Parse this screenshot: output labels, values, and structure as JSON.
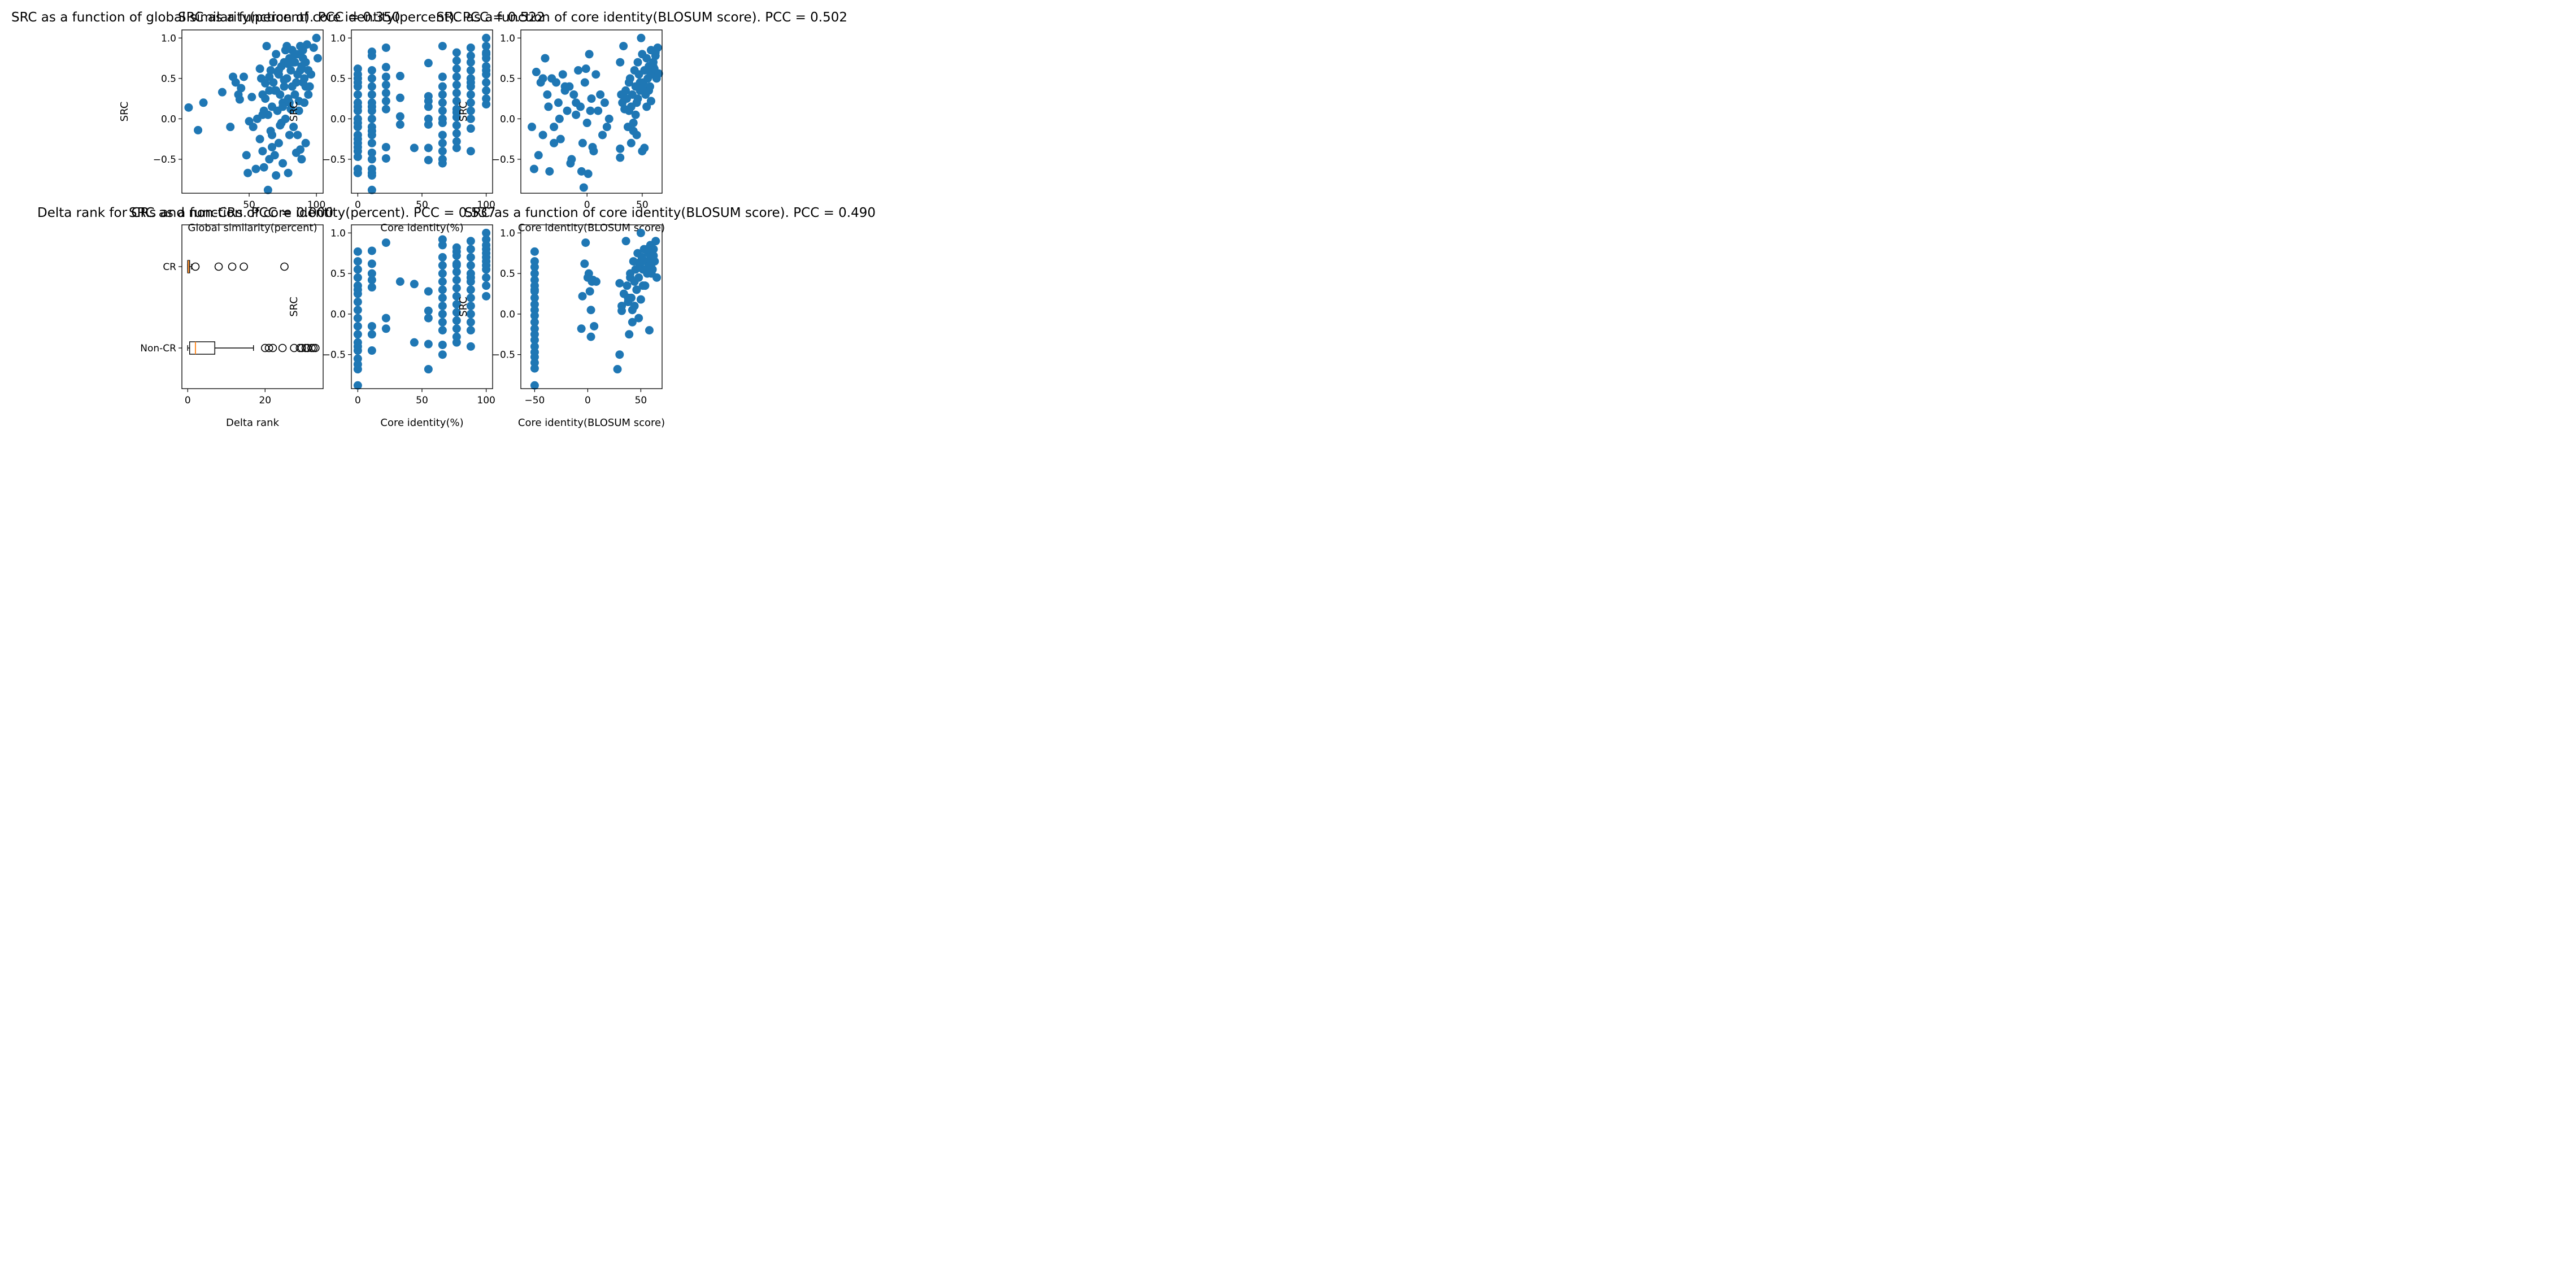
{
  "colors": {
    "marker": "#1f77b4",
    "median": "#ff7f0e",
    "axis": "#000000",
    "background": "#ffffff"
  },
  "chart_data": [
    {
      "id": "a",
      "type": "scatter",
      "title": "SRC as a function of global similarity(percent). PCC = 0.350",
      "xlabel": "Global similarity(percent)",
      "ylabel": "SRC",
      "xlim": [
        0,
        105
      ],
      "ylim": [
        -0.92,
        1.1
      ],
      "xticks": [
        50,
        100
      ],
      "yticks": [
        -0.5,
        0.0,
        0.5,
        1.0
      ],
      "tick_labels_x": [
        "50",
        "100"
      ],
      "tick_labels_y": [
        "−0.5",
        "0.0",
        "0.5",
        "1.0"
      ],
      "x": [
        5,
        12,
        16,
        30,
        36,
        38,
        40,
        42,
        43,
        44,
        46,
        48,
        49,
        50,
        52,
        53,
        55,
        56,
        58,
        59,
        60,
        60,
        61,
        62,
        63,
        64,
        64,
        65,
        65,
        66,
        67,
        67,
        68,
        69,
        70,
        70,
        71,
        72,
        72,
        73,
        74,
        74,
        75,
        75,
        76,
        76,
        77,
        78,
        78,
        79,
        79,
        80,
        80,
        81,
        82,
        82,
        83,
        84,
        84,
        85,
        86,
        86,
        87,
        88,
        88,
        89,
        89,
        90,
        90,
        91,
        92,
        92,
        93,
        94,
        95,
        96,
        98,
        100,
        101,
        60,
        62,
        66,
        68,
        70,
        72,
        75,
        77,
        78,
        80,
        83,
        85,
        86,
        88,
        90,
        92,
        94,
        58,
        61,
        65,
        67,
        69,
        71,
        73,
        76,
        79,
        81,
        84,
        87,
        89,
        91
      ],
      "y": [
        0.14,
        -0.14,
        0.2,
        0.33,
        -0.1,
        0.52,
        0.45,
        0.3,
        0.24,
        0.38,
        0.52,
        -0.45,
        -0.67,
        -0.03,
        0.27,
        -0.1,
        -0.62,
        0.0,
        0.62,
        0.5,
        -0.4,
        0.3,
        -0.6,
        0.44,
        0.9,
        -0.88,
        0.05,
        0.35,
        -0.5,
        0.6,
        0.15,
        -0.2,
        0.7,
        -0.45,
        0.8,
        -0.7,
        0.1,
        0.55,
        -0.3,
        0.3,
        0.65,
        -0.05,
        0.2,
        -0.55,
        0.7,
        0.4,
        0.0,
        0.9,
        0.5,
        -0.67,
        0.25,
        0.75,
        -0.2,
        0.6,
        0.4,
        0.85,
        -0.1,
        0.7,
        0.3,
        -0.42,
        0.55,
        0.8,
        0.1,
        0.9,
        -0.38,
        0.65,
        -0.5,
        0.45,
        0.85,
        0.2,
        -0.3,
        0.7,
        0.92,
        0.6,
        0.4,
        0.55,
        0.88,
        1.0,
        0.75,
        0.05,
        0.25,
        -0.15,
        0.45,
        0.35,
        0.6,
        0.15,
        0.85,
        0.5,
        0.2,
        0.7,
        0.45,
        -0.2,
        0.6,
        0.75,
        0.4,
        0.3,
        -0.25,
        0.1,
        0.52,
        -0.35,
        0.35,
        0.58,
        -0.08,
        0.48,
        0.68,
        0.12,
        0.8,
        0.22,
        0.62,
        0.5
      ]
    },
    {
      "id": "b",
      "type": "scatter",
      "title": "SRC as a function of core identity(percent). PCC = 0.522",
      "xlabel": "Core identity(%)",
      "ylabel": "SRC",
      "xlim": [
        -5,
        105
      ],
      "ylim": [
        -0.92,
        1.1
      ],
      "xticks": [
        0,
        50,
        100
      ],
      "yticks": [
        -0.5,
        0.0,
        0.5,
        1.0
      ],
      "tick_labels_x": [
        "0",
        "50",
        "100"
      ],
      "tick_labels_y": [
        "−0.5",
        "0.0",
        "0.5",
        "1.0"
      ],
      "x": [
        0,
        0,
        0,
        0,
        0,
        0,
        0,
        0,
        0,
        0,
        0,
        0,
        0,
        0,
        0,
        0,
        0,
        0,
        0,
        0,
        11,
        11,
        11,
        11,
        11,
        11,
        11,
        11,
        11,
        11,
        11,
        11,
        11,
        11,
        11,
        11,
        11,
        11,
        11,
        11,
        22,
        22,
        22,
        22,
        22,
        22,
        22,
        22,
        22,
        33,
        33,
        33,
        33,
        44,
        55,
        55,
        55,
        55,
        55,
        55,
        55,
        55,
        66,
        66,
        66,
        66,
        66,
        66,
        66,
        66,
        66,
        66,
        66,
        66,
        66,
        77,
        77,
        77,
        77,
        77,
        77,
        77,
        77,
        77,
        77,
        77,
        77,
        77,
        77,
        88,
        88,
        88,
        88,
        88,
        88,
        88,
        88,
        88,
        88,
        88,
        88,
        88,
        100,
        100,
        100,
        100,
        100,
        100,
        100,
        100,
        100,
        100,
        100,
        100
      ],
      "y": [
        0.62,
        0.5,
        0.4,
        0.3,
        0.2,
        0.1,
        0.0,
        -0.1,
        -0.2,
        -0.3,
        -0.4,
        -0.47,
        -0.62,
        -0.67,
        0.55,
        0.45,
        0.15,
        -0.05,
        -0.25,
        -0.35,
        0.83,
        0.78,
        0.6,
        0.5,
        0.4,
        0.3,
        0.2,
        0.1,
        0.0,
        -0.1,
        -0.2,
        -0.3,
        -0.42,
        -0.5,
        -0.62,
        -0.67,
        -0.7,
        -0.88,
        0.15,
        -0.15,
        0.88,
        0.64,
        0.52,
        0.42,
        0.32,
        0.22,
        0.12,
        -0.35,
        -0.49,
        0.53,
        0.26,
        0.03,
        -0.07,
        -0.36,
        0.69,
        0.28,
        0.22,
        0.15,
        0.0,
        -0.07,
        -0.36,
        -0.51,
        0.9,
        0.52,
        0.4,
        0.3,
        0.2,
        0.1,
        0.0,
        -0.05,
        -0.2,
        -0.3,
        -0.4,
        -0.5,
        -0.55,
        0.82,
        0.72,
        0.62,
        0.52,
        0.42,
        0.32,
        0.22,
        0.12,
        0.02,
        -0.08,
        -0.18,
        -0.28,
        -0.36,
        0.08,
        0.88,
        0.78,
        0.7,
        0.6,
        0.5,
        0.4,
        0.3,
        0.2,
        0.1,
        0.0,
        -0.12,
        -0.4,
        0.45,
        1.0,
        0.9,
        0.82,
        0.75,
        0.65,
        0.55,
        0.45,
        0.35,
        0.25,
        0.18,
        0.8,
        0.6
      ]
    },
    {
      "id": "c",
      "type": "scatter",
      "title": "SRC as a function of core identity(BLOSUM score). PCC = 0.502",
      "xlabel": "Core identity(BLOSUM score)",
      "ylabel": "SRC",
      "xlim": [
        -60,
        68
      ],
      "ylim": [
        -0.92,
        1.1
      ],
      "xticks": [
        0,
        50
      ],
      "yticks": [
        -0.5,
        0.0,
        0.5,
        1.0
      ],
      "tick_labels_x": [
        "0",
        "50"
      ],
      "tick_labels_y": [
        "−0.5",
        "0.0",
        "0.5",
        "1.0"
      ],
      "x": [
        -50,
        -48,
        -46,
        -44,
        -42,
        -40,
        -38,
        -36,
        -34,
        -32,
        -30,
        -28,
        -26,
        -24,
        -22,
        -20,
        -18,
        -16,
        -14,
        -12,
        -10,
        -8,
        -6,
        -4,
        -2,
        0,
        2,
        4,
        6,
        8,
        10,
        12,
        14,
        16,
        18,
        20,
        -5,
        -3,
        -1,
        1,
        3,
        5,
        -10,
        -15,
        -20,
        -25,
        -30,
        -35,
        -40,
        30,
        30,
        30,
        31,
        32,
        33,
        34,
        35,
        36,
        37,
        38,
        39,
        40,
        41,
        42,
        43,
        44,
        45,
        46,
        47,
        48,
        49,
        50,
        51,
        52,
        53,
        54,
        55,
        56,
        57,
        58,
        59,
        60,
        61,
        62,
        63,
        64,
        65,
        40,
        42,
        44,
        46,
        48,
        50,
        52,
        54,
        56,
        58,
        60,
        62,
        38,
        45,
        50,
        55,
        60
      ],
      "y": [
        -0.1,
        -0.62,
        0.58,
        -0.45,
        0.45,
        -0.2,
        0.75,
        0.3,
        -0.65,
        0.5,
        -0.1,
        0.45,
        0.2,
        -0.25,
        0.55,
        0.35,
        0.1,
        0.4,
        -0.5,
        0.3,
        0.05,
        0.6,
        0.15,
        -0.3,
        0.45,
        -0.05,
        0.8,
        0.25,
        -0.4,
        0.55,
        0.1,
        0.3,
        -0.2,
        0.2,
        -0.1,
        0.0,
        -0.65,
        -0.85,
        0.62,
        -0.68,
        0.1,
        -0.35,
        0.2,
        -0.55,
        0.4,
        0.0,
        -0.3,
        0.15,
        0.5,
        0.7,
        -0.37,
        -0.48,
        0.3,
        0.2,
        0.9,
        0.12,
        0.35,
        0.25,
        -0.1,
        0.45,
        0.5,
        0.15,
        0.3,
        -0.05,
        0.6,
        0.4,
        0.2,
        0.7,
        0.55,
        0.35,
        1.0,
        0.8,
        0.45,
        0.6,
        0.3,
        0.75,
        0.5,
        0.65,
        0.4,
        0.85,
        0.55,
        0.7,
        0.62,
        0.78,
        0.5,
        0.88,
        0.56,
        -0.3,
        -0.15,
        0.05,
        0.25,
        0.45,
        -0.4,
        -0.36,
        0.15,
        0.35,
        0.22,
        0.65,
        0.82,
        0.1,
        -0.2,
        0.38,
        0.6,
        0.7
      ]
    },
    {
      "id": "d",
      "type": "box",
      "title": "Delta rank for CRs and non-CRs. PCC = 0.000",
      "xlabel": "Delta rank",
      "categories": [
        "CR",
        "Non-CR"
      ],
      "xlim": [
        -1.5,
        35
      ],
      "xticks": [
        0,
        20
      ],
      "tick_labels_x": [
        "0",
        "20"
      ],
      "boxes": [
        {
          "name": "CR",
          "whisker_low": 0,
          "q1": 0,
          "median": 0.2,
          "q3": 0.5,
          "whisker_high": 1,
          "outliers": [
            2,
            8,
            11.5,
            14.5,
            25
          ]
        },
        {
          "name": "Non-CR",
          "whisker_low": 0,
          "q1": 0.5,
          "median": 2,
          "q3": 7,
          "whisker_high": 17,
          "outliers": [
            20,
            21,
            22,
            24.5,
            27.5,
            29,
            29.5,
            30.5,
            31,
            32,
            32.5,
            33
          ]
        }
      ]
    },
    {
      "id": "e",
      "type": "scatter",
      "title": "SRC as a function of core identity(percent). PCC = 0.537",
      "xlabel": "Core identity(%)",
      "ylabel": "SRC",
      "xlim": [
        -5,
        105
      ],
      "ylim": [
        -0.92,
        1.1
      ],
      "xticks": [
        0,
        50,
        100
      ],
      "yticks": [
        -0.5,
        0.0,
        0.5,
        1.0
      ],
      "tick_labels_x": [
        "0",
        "50",
        "100"
      ],
      "tick_labels_y": [
        "−0.5",
        "0.0",
        "0.5",
        "1.0"
      ],
      "x": [
        0,
        0,
        0,
        0,
        0,
        0,
        0,
        0,
        0,
        0,
        0,
        0,
        0,
        0,
        0,
        0,
        0,
        0,
        0,
        11,
        11,
        11,
        11,
        11,
        11,
        11,
        11,
        22,
        22,
        22,
        33,
        44,
        44,
        55,
        55,
        55,
        55,
        55,
        66,
        66,
        66,
        66,
        66,
        66,
        66,
        66,
        66,
        66,
        66,
        66,
        66,
        66,
        77,
        77,
        77,
        77,
        77,
        77,
        77,
        77,
        77,
        77,
        77,
        77,
        77,
        77,
        77,
        88,
        88,
        88,
        88,
        88,
        88,
        88,
        88,
        88,
        88,
        88,
        88,
        88,
        88,
        100,
        100,
        100,
        100,
        100,
        100,
        100,
        100,
        100,
        100,
        100,
        100
      ],
      "y": [
        0.77,
        0.65,
        0.55,
        0.45,
        0.35,
        0.25,
        0.15,
        0.05,
        -0.05,
        -0.15,
        -0.25,
        -0.35,
        -0.45,
        -0.55,
        -0.62,
        -0.68,
        -0.88,
        0.3,
        -0.4,
        0.78,
        0.62,
        0.5,
        0.42,
        0.33,
        -0.15,
        -0.25,
        -0.45,
        0.88,
        -0.05,
        -0.18,
        0.4,
        0.37,
        -0.35,
        0.28,
        0.04,
        -0.05,
        -0.37,
        -0.68,
        0.92,
        0.85,
        0.7,
        0.6,
        0.5,
        0.4,
        0.3,
        0.2,
        0.1,
        0.0,
        -0.1,
        -0.2,
        -0.38,
        -0.5,
        0.82,
        0.72,
        0.62,
        0.52,
        0.42,
        0.32,
        0.22,
        0.12,
        0.02,
        -0.08,
        -0.18,
        -0.28,
        -0.35,
        0.77,
        0.6,
        0.9,
        0.8,
        0.7,
        0.6,
        0.5,
        0.4,
        0.3,
        0.2,
        0.1,
        0.0,
        -0.1,
        -0.2,
        -0.4,
        0.45,
        1.0,
        0.92,
        0.85,
        0.75,
        0.65,
        0.55,
        0.45,
        0.35,
        0.22,
        0.6,
        0.8,
        0.7
      ]
    },
    {
      "id": "f",
      "type": "scatter",
      "title": "SRC as a function of core identity(BLOSUM score). PCC = 0.490",
      "xlabel": "Core identity(BLOSUM score)",
      "ylabel": "SRC",
      "xlim": [
        -63,
        70
      ],
      "ylim": [
        -0.92,
        1.1
      ],
      "xticks": [
        -50,
        0,
        50
      ],
      "yticks": [
        -0.5,
        0.0,
        0.5,
        1.0
      ],
      "tick_labels_x": [
        "−50",
        "0",
        "50"
      ],
      "tick_labels_y": [
        "−0.5",
        "0.0",
        "0.5",
        "1.0"
      ],
      "x": [
        -50,
        -50,
        -50,
        -50,
        -50,
        -50,
        -50,
        -50,
        -50,
        -50,
        -50,
        -50,
        -50,
        -50,
        -50,
        -50,
        -50,
        -50,
        -50,
        -50,
        -50,
        -50,
        -5,
        -3,
        -2,
        0,
        1,
        2,
        3,
        4,
        5,
        6,
        8,
        -6,
        3,
        28,
        30,
        32,
        34,
        36,
        37,
        38,
        39,
        40,
        41,
        42,
        43,
        44,
        45,
        46,
        47,
        48,
        49,
        50,
        51,
        52,
        53,
        54,
        55,
        56,
        57,
        58,
        59,
        60,
        61,
        62,
        63,
        64,
        65,
        38,
        40,
        42,
        44,
        46,
        48,
        50,
        52,
        54,
        56,
        58,
        60,
        62,
        30,
        32,
        50,
        55,
        60
      ],
      "y": [
        0.77,
        0.65,
        0.58,
        0.5,
        0.42,
        0.35,
        0.28,
        0.2,
        0.12,
        0.05,
        -0.02,
        -0.1,
        -0.18,
        -0.25,
        -0.32,
        -0.4,
        -0.47,
        -0.53,
        -0.6,
        -0.67,
        -0.88,
        0.3,
        0.22,
        0.62,
        0.88,
        0.45,
        0.5,
        0.28,
        0.05,
        0.4,
        0.42,
        -0.15,
        0.4,
        -0.18,
        -0.28,
        -0.68,
        -0.5,
        0.1,
        0.25,
        0.9,
        0.35,
        0.15,
        -0.25,
        0.5,
        0.2,
        0.05,
        0.65,
        0.4,
        0.55,
        0.3,
        0.75,
        0.45,
        0.6,
        1.0,
        0.7,
        0.55,
        0.8,
        0.35,
        0.65,
        0.5,
        0.75,
        0.6,
        0.85,
        0.7,
        0.55,
        0.8,
        0.65,
        0.9,
        0.45,
        0.2,
        0.45,
        -0.1,
        0.1,
        0.3,
        -0.05,
        0.65,
        0.35,
        0.55,
        0.8,
        -0.2,
        0.62,
        0.72,
        0.38,
        0.04,
        0.18,
        0.55,
        0.5
      ]
    }
  ]
}
